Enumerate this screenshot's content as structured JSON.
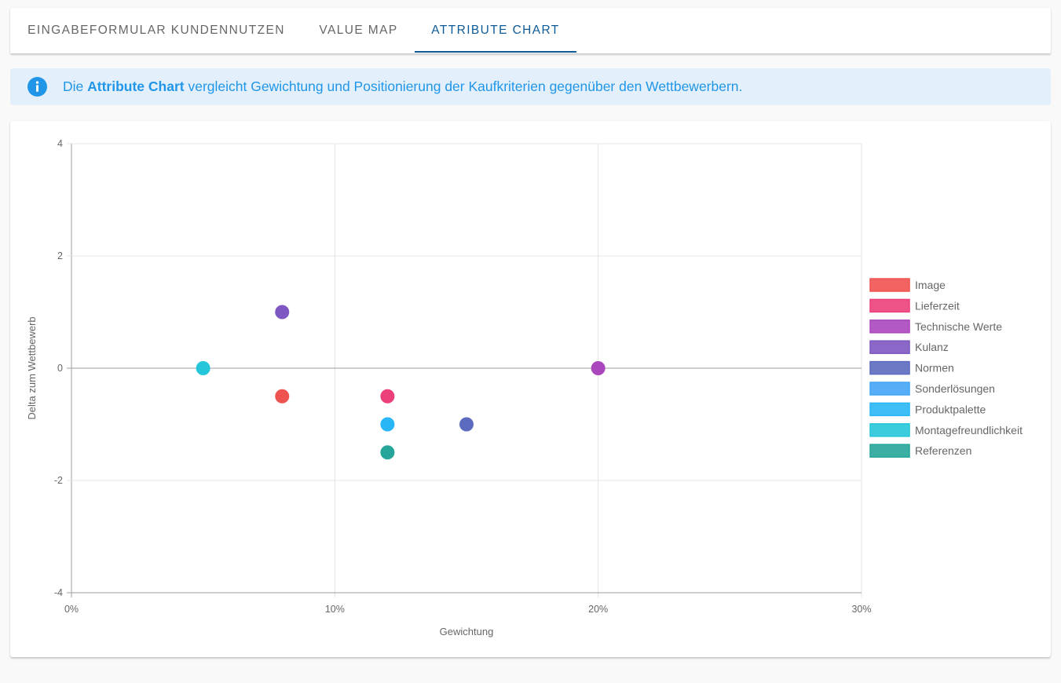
{
  "tabs": [
    {
      "label": "Eingabeformular Kundennutzen",
      "active": false
    },
    {
      "label": "Value Map",
      "active": false
    },
    {
      "label": "Attribute Chart",
      "active": true
    }
  ],
  "info": {
    "icon": "info-icon",
    "prefix": "Die ",
    "bold": "Attribute Chart",
    "suffix": " vergleicht Gewichtung und Positionierung der Kaufkriterien gegenüber den Wettbewerbern."
  },
  "chart_data": {
    "type": "scatter",
    "xlabel": "Gewichtung",
    "ylabel": "Delta zum Wettbewerb",
    "xlim": [
      0,
      30
    ],
    "ylim": [
      -4,
      4
    ],
    "x_ticks": [
      0,
      10,
      20,
      30
    ],
    "x_tick_labels": [
      "0%",
      "10%",
      "20%",
      "30%"
    ],
    "y_ticks": [
      -4,
      -2,
      0,
      2,
      4
    ],
    "y_tick_labels": [
      "-4",
      "-2",
      "0",
      "2",
      "4"
    ],
    "grid": true,
    "legend_position": "right",
    "series": [
      {
        "name": "Image",
        "color": "#ef5350",
        "points": [
          {
            "x": 8,
            "y": -0.5
          }
        ]
      },
      {
        "name": "Lieferzeit",
        "color": "#ec407a",
        "points": [
          {
            "x": 12,
            "y": -0.5
          }
        ]
      },
      {
        "name": "Technische Werte",
        "color": "#ab47bc",
        "points": [
          {
            "x": 20,
            "y": 0
          }
        ]
      },
      {
        "name": "Kulanz",
        "color": "#7e57c2",
        "points": [
          {
            "x": 8,
            "y": 1
          }
        ]
      },
      {
        "name": "Normen",
        "color": "#5c6bc0",
        "points": [
          {
            "x": 15,
            "y": -1
          }
        ]
      },
      {
        "name": "Sonderlösungen",
        "color": "#42a5f5",
        "points": []
      },
      {
        "name": "Produktpalette",
        "color": "#29b6f6",
        "points": [
          {
            "x": 12,
            "y": -1
          }
        ]
      },
      {
        "name": "Montagefreundlichkeit",
        "color": "#26c6da",
        "points": [
          {
            "x": 5,
            "y": 0
          }
        ]
      },
      {
        "name": "Referenzen",
        "color": "#26a69a",
        "points": [
          {
            "x": 12,
            "y": -1.5
          }
        ]
      }
    ]
  }
}
